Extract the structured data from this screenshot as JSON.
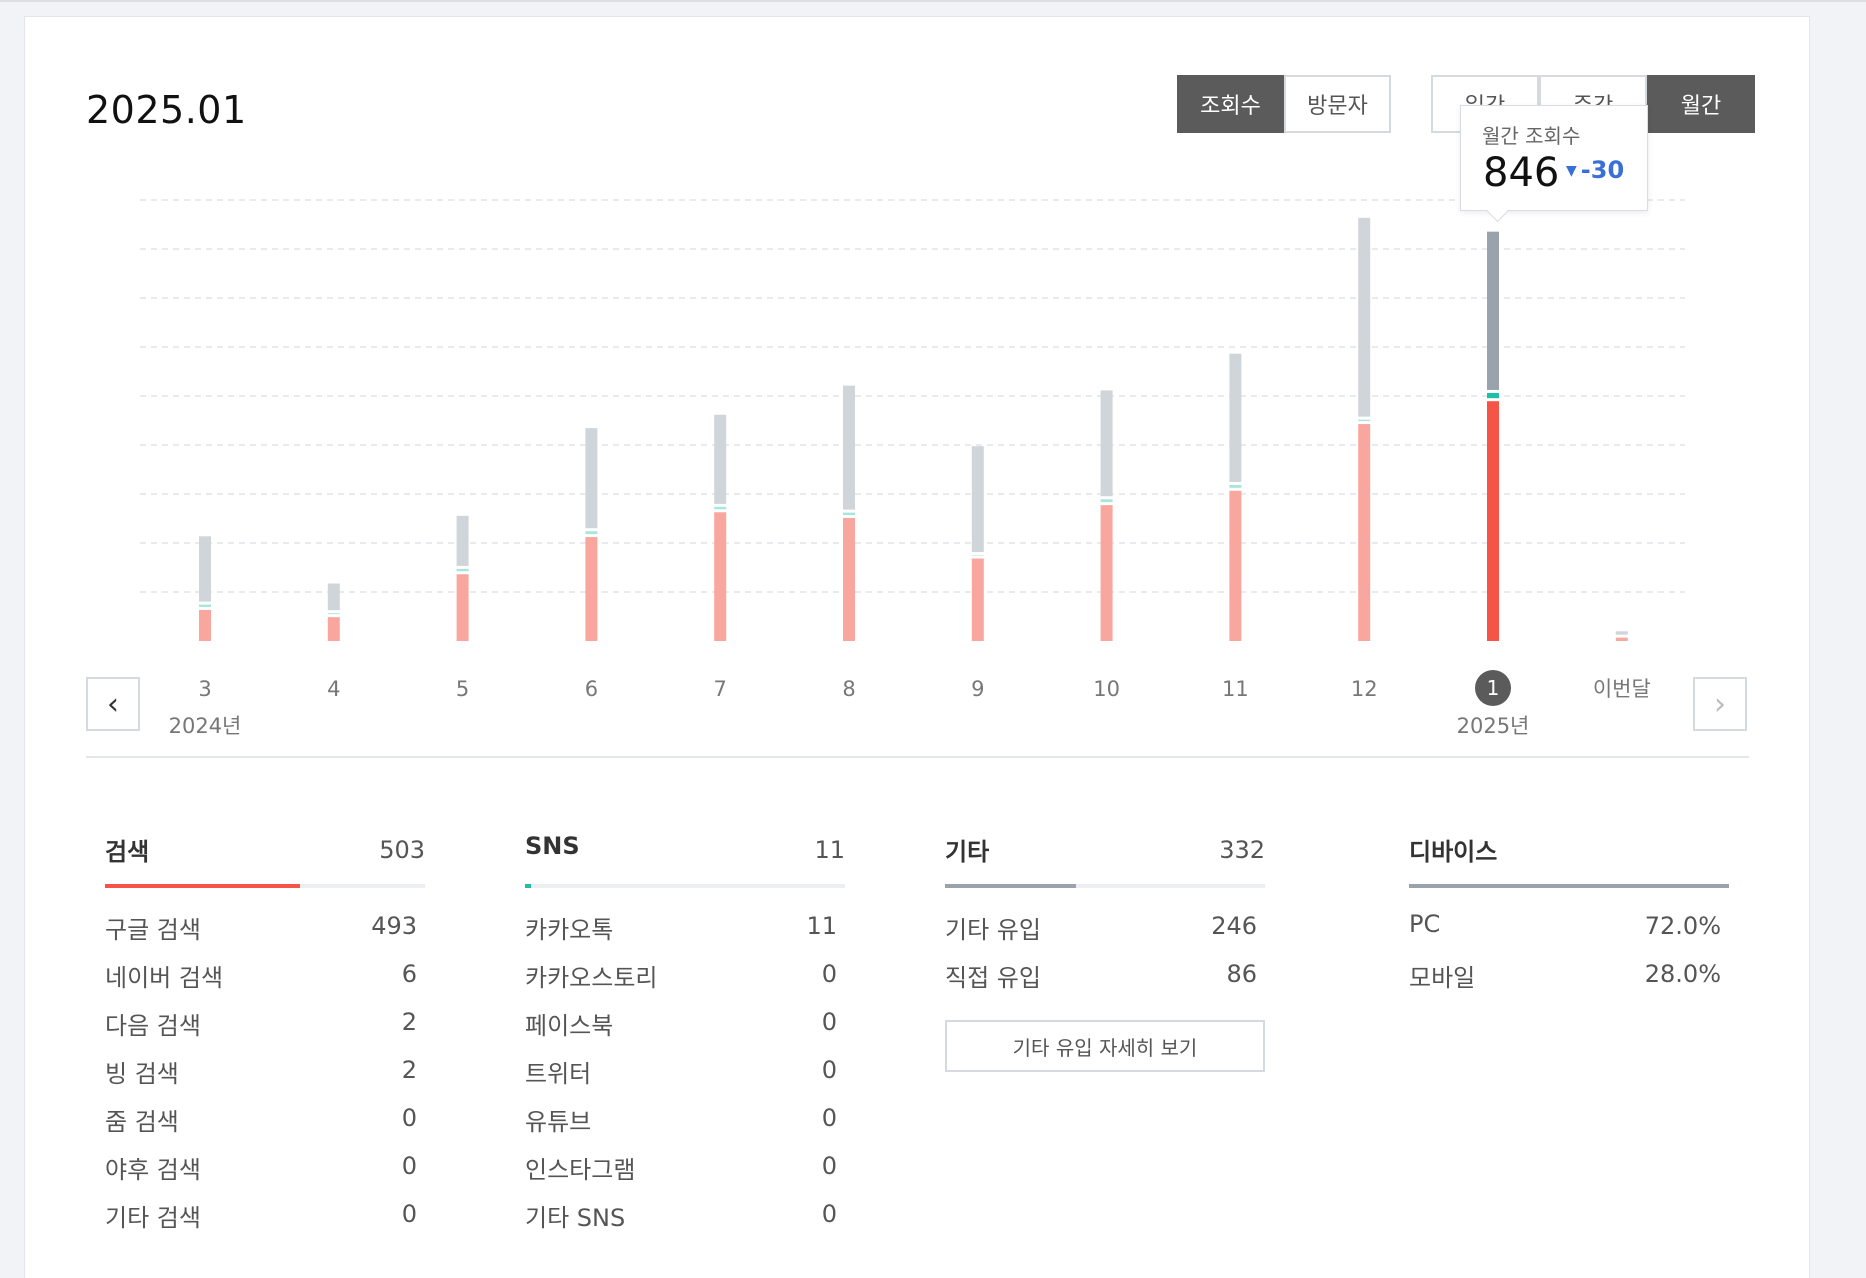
{
  "title": "2025.01",
  "metric_toggle": [
    {
      "label": "조회수",
      "active": true
    },
    {
      "label": "방문자",
      "active": false
    }
  ],
  "period_toggle": [
    {
      "label": "일간",
      "active": false
    },
    {
      "label": "주간",
      "active": false
    },
    {
      "label": "월간",
      "active": true
    }
  ],
  "tooltip": {
    "label": "월간 조회수",
    "value": "846",
    "delta": "-30"
  },
  "nav": {
    "prev_icon": "chevron-left-icon",
    "next_icon": "chevron-right-icon"
  },
  "chart_data": {
    "type": "bar",
    "categories": [
      "3",
      "4",
      "5",
      "6",
      "7",
      "8",
      "9",
      "10",
      "11",
      "12",
      "1",
      "이번달"
    ],
    "year_labels": [
      {
        "index": 0,
        "text": "2024년"
      },
      {
        "index": 10,
        "text": "2025년"
      }
    ],
    "selected_index": 10,
    "series": [
      {
        "values": [
          65,
          50,
          140,
          218,
          270,
          258,
          173,
          285,
          315,
          455,
          503,
          7
        ],
        "color": "#f9a69e",
        "selected_color": "#f65446"
      },
      {
        "values": [
          5,
          2,
          5,
          6,
          5,
          5,
          1,
          6,
          6,
          3,
          11,
          0
        ],
        "color": "#a8e6dc",
        "selected_color": "#1fbfa6"
      },
      {
        "values": [
          137,
          56,
          105,
          210,
          187,
          260,
          222,
          222,
          269,
          417,
          332,
          7
        ],
        "color": "#d0d5da",
        "selected_color": "#9aa3ab"
      }
    ],
    "ylim": [
      0,
      925
    ],
    "grid": true
  },
  "sections": [
    {
      "name": "검색",
      "total": "503",
      "bar_color": "#f65446",
      "bar_fraction": 0.61,
      "rows": [
        {
          "name": "구글 검색",
          "value": "493"
        },
        {
          "name": "네이버 검색",
          "value": "6"
        },
        {
          "name": "다음 검색",
          "value": "2"
        },
        {
          "name": "빙 검색",
          "value": "2"
        },
        {
          "name": "줌 검색",
          "value": "0"
        },
        {
          "name": "야후 검색",
          "value": "0"
        },
        {
          "name": "기타 검색",
          "value": "0"
        }
      ]
    },
    {
      "name": "SNS",
      "total": "11",
      "bar_color": "#1fbfa6",
      "bar_fraction": 0.02,
      "rows": [
        {
          "name": "카카오톡",
          "value": "11"
        },
        {
          "name": "카카오스토리",
          "value": "0"
        },
        {
          "name": "페이스북",
          "value": "0"
        },
        {
          "name": "트위터",
          "value": "0"
        },
        {
          "name": "유튜브",
          "value": "0"
        },
        {
          "name": "인스타그램",
          "value": "0"
        },
        {
          "name": "기타 SNS",
          "value": "0"
        }
      ]
    },
    {
      "name": "기타",
      "total": "332",
      "bar_color": "#9aa3ab",
      "bar_fraction": 0.41,
      "rows": [
        {
          "name": "기타 유입",
          "value": "246"
        },
        {
          "name": "직접 유입",
          "value": "86"
        }
      ],
      "button_label": "기타 유입 자세히 보기"
    },
    {
      "name": "디바이스",
      "total": "",
      "bar_color": "#9aa3ab",
      "bar_fraction": 1.0,
      "rows": [
        {
          "name": "PC",
          "value": "72.0%"
        },
        {
          "name": "모바일",
          "value": "28.0%"
        }
      ]
    }
  ]
}
